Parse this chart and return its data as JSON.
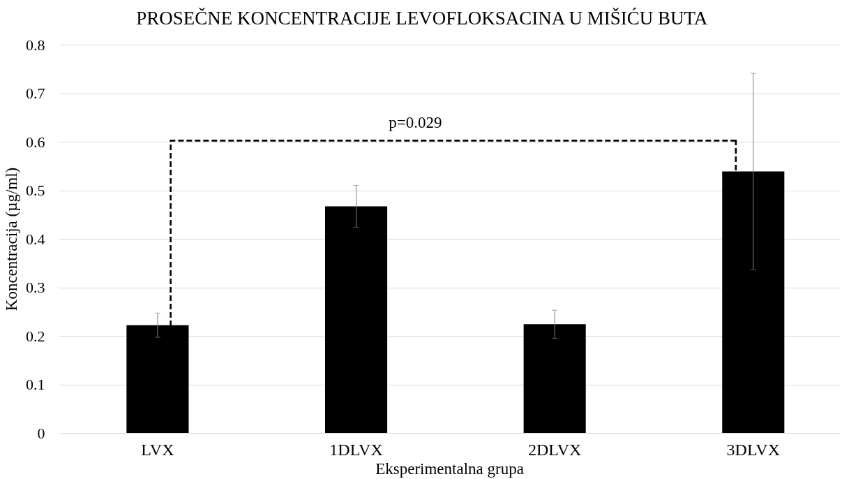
{
  "chart_data": {
    "type": "bar",
    "title": "PROSEČNE KONCENTRACIJE LEVOFLOKSACINA U MIŠIĆU BUTA",
    "xlabel": "Eksperimentalna grupa",
    "ylabel": "Koncentracija (µg/ml)",
    "categories": [
      "LVX",
      "1DLVX",
      "2DLVX",
      "3DLVX"
    ],
    "values": [
      0.222,
      0.467,
      0.224,
      0.539
    ],
    "errors": [
      0.025,
      0.043,
      0.029,
      0.202
    ],
    "color": "#000000",
    "ylim": [
      0,
      0.8
    ],
    "yticks": [
      0,
      0.1,
      0.2,
      0.3,
      0.4,
      0.5,
      0.6,
      0.7,
      0.8
    ],
    "grid": "y",
    "annotations": [
      "p=0.029"
    ]
  }
}
